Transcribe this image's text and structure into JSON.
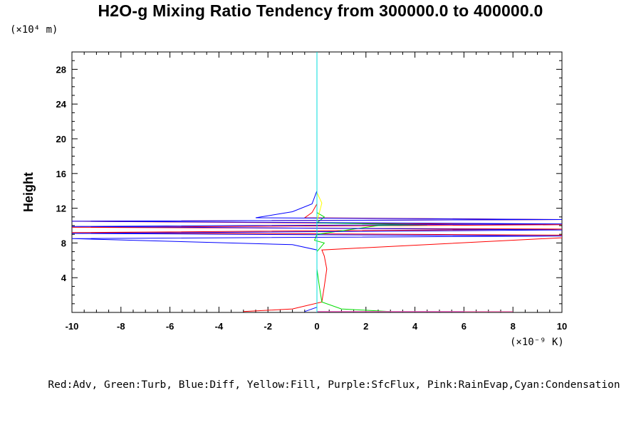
{
  "chart_data": {
    "type": "line",
    "title": "H2O-g Mixing Ratio Tendency from 300000.0 to 400000.0",
    "ylabel": "Height",
    "xlabel": "",
    "x_unit": "(×10⁻⁹ K)",
    "y_unit": "(×10⁴ m)",
    "xlim": [
      -10,
      10
    ],
    "ylim": [
      0,
      30
    ],
    "x_ticks": [
      "-10",
      "-8",
      "-6",
      "-4",
      "-2",
      "0",
      "2",
      "4",
      "6",
      "8",
      "10"
    ],
    "y_ticks": [
      "4",
      "8",
      "12",
      "16",
      "20",
      "24",
      "28"
    ],
    "legend_text": "Red:Adv, Green:Turb, Blue:Diff, Yellow:Fill, Purple:SfcFlux, Pink:RainEvap,Cyan:Condensation",
    "colors": {
      "Adv": "#ff0000",
      "Turb": "#00dd00",
      "Diff": "#0000ff",
      "Fill": "#ffff00",
      "SfcFlux": "#a020f0",
      "RainEvap": "#ff69b4",
      "Condensation": "#00dddd"
    },
    "series": [
      {
        "name": "Adv",
        "values": [
          [
            -3.0,
            0.1
          ],
          [
            -1.0,
            0.4
          ],
          [
            0.2,
            1.2
          ],
          [
            0.3,
            3.0
          ],
          [
            0.4,
            5.0
          ],
          [
            0.3,
            6.5
          ],
          [
            0.2,
            7.2
          ],
          [
            10.0,
            8.6
          ],
          [
            10.0,
            8.9
          ],
          [
            -10.0,
            9.2
          ],
          [
            10.0,
            9.6
          ],
          [
            -10.0,
            9.8
          ],
          [
            10.0,
            10.1
          ],
          [
            -10.0,
            10.5
          ],
          [
            10.0,
            10.7
          ],
          [
            -0.5,
            10.9
          ],
          [
            -0.2,
            11.5
          ],
          [
            0.0,
            12.5
          ],
          [
            0.0,
            20.0
          ],
          [
            0.0,
            30.0
          ]
        ]
      },
      {
        "name": "Turb",
        "values": [
          [
            3.0,
            0.1
          ],
          [
            1.0,
            0.4
          ],
          [
            0.2,
            1.2
          ],
          [
            0.1,
            3.0
          ],
          [
            0.0,
            5.0
          ],
          [
            0.0,
            7.0
          ],
          [
            0.3,
            8.0
          ],
          [
            -0.1,
            8.3
          ],
          [
            0.0,
            9.0
          ],
          [
            2.5,
            10.0
          ],
          [
            4.5,
            10.1
          ],
          [
            0.0,
            10.3
          ],
          [
            0.3,
            11.0
          ],
          [
            0.0,
            11.5
          ],
          [
            0.0,
            20.0
          ],
          [
            0.0,
            30.0
          ]
        ]
      },
      {
        "name": "Diff",
        "values": [
          [
            -0.5,
            0.1
          ],
          [
            0.0,
            0.6
          ],
          [
            0.0,
            5.0
          ],
          [
            0.0,
            7.2
          ],
          [
            -1.0,
            7.8
          ],
          [
            -10.0,
            8.5
          ],
          [
            10.0,
            8.8
          ],
          [
            -10.0,
            9.1
          ],
          [
            10.0,
            9.5
          ],
          [
            -10.0,
            9.9
          ],
          [
            10.0,
            10.2
          ],
          [
            -10.0,
            10.5
          ],
          [
            10.0,
            10.7
          ],
          [
            -2.5,
            10.9
          ],
          [
            -1.0,
            11.6
          ],
          [
            -0.2,
            12.5
          ],
          [
            0.0,
            14.0
          ],
          [
            0.0,
            30.0
          ]
        ]
      },
      {
        "name": "Fill",
        "values": [
          [
            0.0,
            0.1
          ],
          [
            0.0,
            10.5
          ],
          [
            0.1,
            11.5
          ],
          [
            0.2,
            12.6
          ],
          [
            0.0,
            13.8
          ],
          [
            0.0,
            30.0
          ]
        ]
      },
      {
        "name": "SfcFlux",
        "values": [
          [
            0.0,
            0.1
          ],
          [
            6.0,
            0.1
          ]
        ]
      },
      {
        "name": "RainEvap",
        "values": [
          [
            0.0,
            0.1
          ],
          [
            8.0,
            0.1
          ]
        ]
      },
      {
        "name": "Condensation",
        "values": [
          [
            0.0,
            0.0
          ],
          [
            0.0,
            30.0
          ]
        ]
      }
    ]
  }
}
